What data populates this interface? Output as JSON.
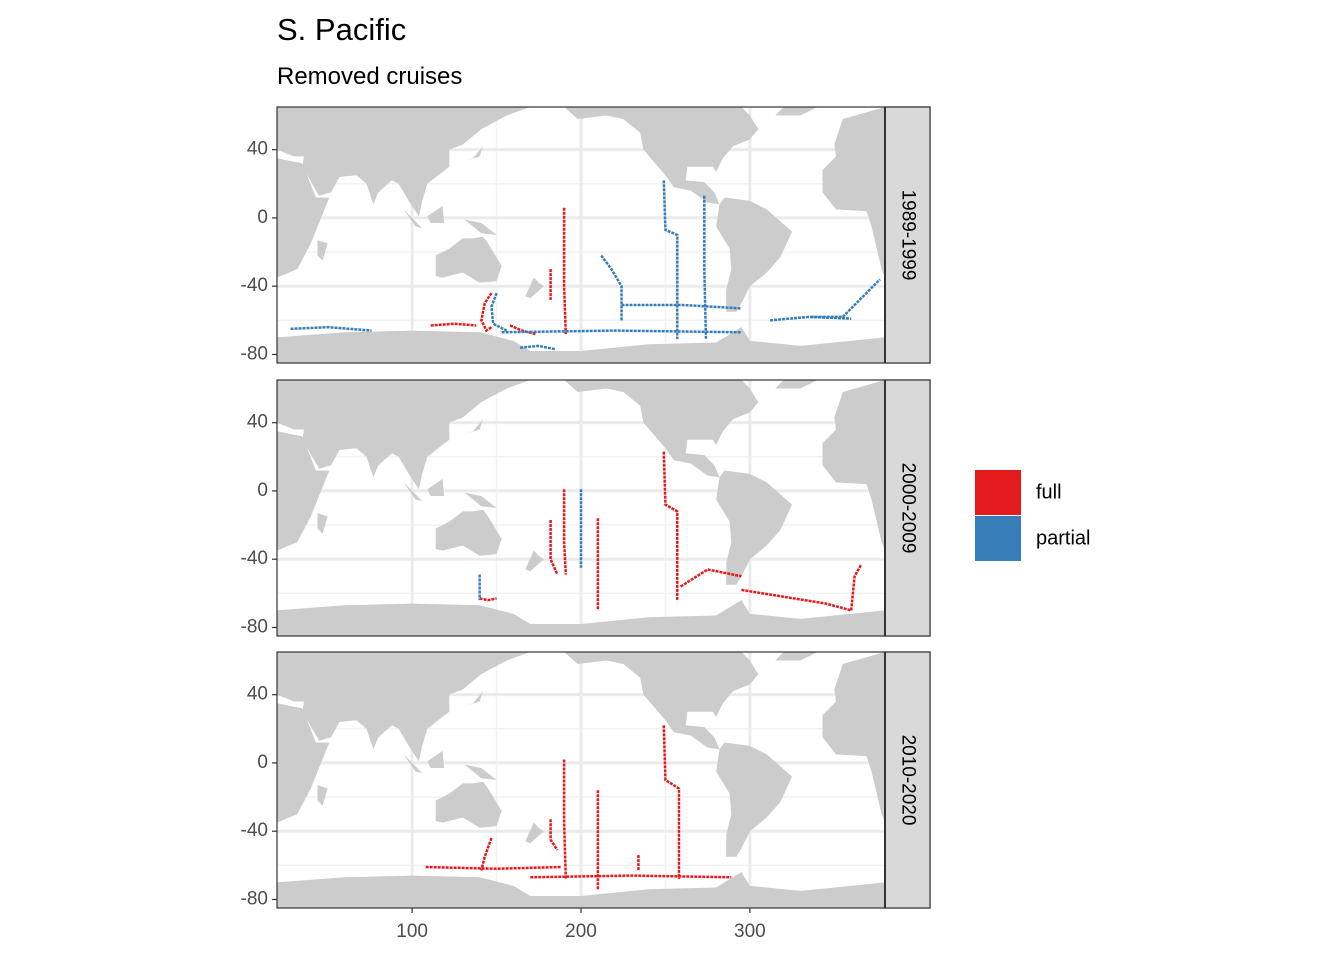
{
  "chart_data": {
    "type": "map",
    "title": "S. Pacific",
    "subtitle": "Removed cruises",
    "xlim": [
      20,
      380
    ],
    "ylim": [
      -85,
      65
    ],
    "xticks": [
      100,
      200,
      300
    ],
    "yticks": [
      -80,
      -40,
      0,
      40
    ],
    "grid": true,
    "legend": "right",
    "series": [
      {
        "name": "full",
        "color": "#e41a1c"
      },
      {
        "name": "partial",
        "color": "#377eb8"
      }
    ],
    "facets": [
      {
        "label": "1989-1999",
        "tracks": [
          {
            "series": 0,
            "x": [
              190,
              190,
              191
            ],
            "y": [
              6,
              -40,
              -68
            ]
          },
          {
            "series": 0,
            "x": [
              147,
              143,
              141,
              144,
              147
            ],
            "y": [
              -44,
              -50,
              -60,
              -66,
              -64
            ]
          },
          {
            "series": 0,
            "x": [
              111,
              125,
              138
            ],
            "y": [
              -63,
              -62,
              -63
            ]
          },
          {
            "series": 0,
            "x": [
              182,
              182
            ],
            "y": [
              -30,
              -48
            ]
          },
          {
            "series": 0,
            "x": [
              158,
              165,
              173
            ],
            "y": [
              -63,
              -66,
              -68
            ]
          },
          {
            "series": 1,
            "x": [
              249,
              250,
              257,
              257
            ],
            "y": [
              22,
              -7,
              -10,
              -71
            ]
          },
          {
            "series": 1,
            "x": [
              273,
              273,
              274
            ],
            "y": [
              13,
              -30,
              -71
            ]
          },
          {
            "series": 1,
            "x": [
              212,
              218,
              224,
              224
            ],
            "y": [
              -22,
              -30,
              -40,
              -60
            ]
          },
          {
            "series": 1,
            "x": [
              224,
              260,
              295
            ],
            "y": [
              -51,
              -51,
              -53
            ]
          },
          {
            "series": 1,
            "x": [
              153,
              220,
              295
            ],
            "y": [
              -67,
              -66,
              -67
            ]
          },
          {
            "series": 1,
            "x": [
              336,
              355,
              377
            ],
            "y": [
              -58,
              -58,
              -36
            ]
          },
          {
            "series": 1,
            "x": [
              312,
              335,
              360
            ],
            "y": [
              -60,
              -58,
              -59
            ]
          },
          {
            "series": 1,
            "x": [
              28,
              50,
              76
            ],
            "y": [
              -65,
              -64,
              -66
            ]
          },
          {
            "series": 1,
            "x": [
              164,
              175,
              185
            ],
            "y": [
              -76,
              -75,
              -77
            ]
          },
          {
            "series": 1,
            "x": [
              150,
              147,
              148,
              156
            ],
            "y": [
              -44,
              -52,
              -62,
              -66
            ]
          }
        ]
      },
      {
        "label": "2000-2009",
        "tracks": [
          {
            "series": 0,
            "x": [
              249,
              250,
              257,
              257
            ],
            "y": [
              23,
              -8,
              -12,
              -64
            ]
          },
          {
            "series": 0,
            "x": [
              190,
              190,
              191
            ],
            "y": [
              1,
              -30,
              -49
            ]
          },
          {
            "series": 0,
            "x": [
              182,
              182,
              186
            ],
            "y": [
              -17,
              -40,
              -49
            ]
          },
          {
            "series": 0,
            "x": [
              210,
              210
            ],
            "y": [
              -16,
              -70
            ]
          },
          {
            "series": 0,
            "x": [
              259,
              275,
              295
            ],
            "y": [
              -56,
              -46,
              -50
            ]
          },
          {
            "series": 0,
            "x": [
              295,
              320,
              345,
              360
            ],
            "y": [
              -58,
              -62,
              -66,
              -70
            ]
          },
          {
            "series": 0,
            "x": [
              360,
              362,
              366
            ],
            "y": [
              -70,
              -50,
              -43
            ]
          },
          {
            "series": 0,
            "x": [
              140,
              145,
              150
            ],
            "y": [
              -63,
              -64,
              -63
            ]
          },
          {
            "series": 1,
            "x": [
              140,
              140
            ],
            "y": [
              -49,
              -64
            ]
          },
          {
            "series": 1,
            "x": [
              200,
              200
            ],
            "y": [
              1,
              -45
            ]
          }
        ]
      },
      {
        "label": "2010-2020",
        "tracks": [
          {
            "series": 0,
            "x": [
              249,
              250,
              258,
              258
            ],
            "y": [
              22,
              -10,
              -15,
              -68
            ]
          },
          {
            "series": 0,
            "x": [
              190,
              190,
              191
            ],
            "y": [
              2,
              -35,
              -68
            ]
          },
          {
            "series": 0,
            "x": [
              210,
              210
            ],
            "y": [
              -16,
              -74
            ]
          },
          {
            "series": 0,
            "x": [
              182,
              182,
              186
            ],
            "y": [
              -33,
              -45,
              -51
            ]
          },
          {
            "series": 0,
            "x": [
              147,
              143,
              141
            ],
            "y": [
              -44,
              -55,
              -63
            ]
          },
          {
            "series": 0,
            "x": [
              170,
              230,
              289
            ],
            "y": [
              -67,
              -66,
              -67
            ]
          },
          {
            "series": 0,
            "x": [
              108,
              150,
              188
            ],
            "y": [
              -61,
              -62,
              -61
            ]
          },
          {
            "series": 0,
            "x": [
              234,
              234
            ],
            "y": [
              -54,
              -63
            ]
          }
        ]
      }
    ]
  }
}
